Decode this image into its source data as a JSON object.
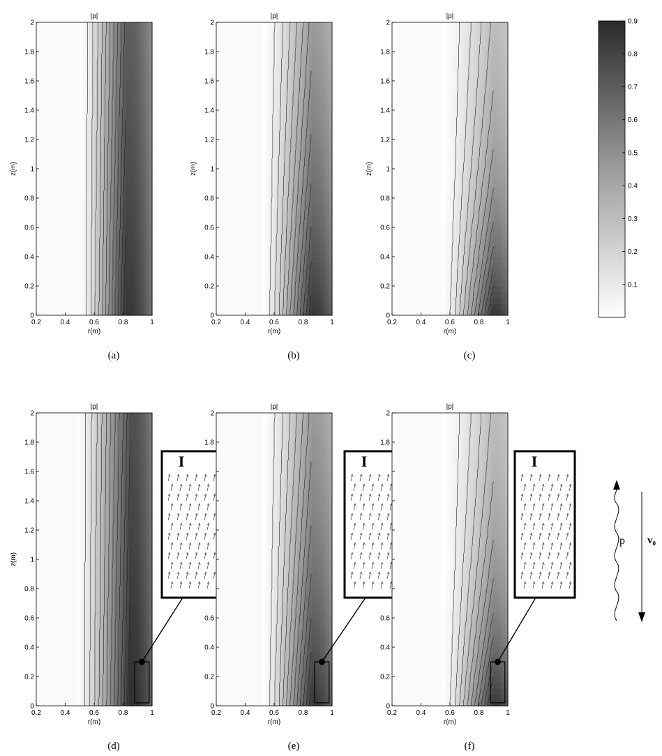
{
  "colorbar": {
    "min": 0,
    "max": 0.9,
    "ticks": [
      "0.1",
      "0.2",
      "0.3",
      "0.4",
      "0.5",
      "0.6",
      "0.7",
      "0.8",
      "0.9"
    ],
    "colormap": "gray-reversed",
    "low_color": "#ffffff",
    "high_color": "#2a2a2a"
  },
  "chart_data": [
    {
      "type": "heatmap",
      "panel": "a",
      "caption": "(a)",
      "title": "|p|",
      "xlabel": "r(m)",
      "ylabel": "z(m)",
      "xlim": [
        0.2,
        1
      ],
      "ylim": [
        0,
        2
      ],
      "xticks": [
        "0.2",
        "0.4",
        "0.6",
        "0.8",
        "1"
      ],
      "yticks": [
        "0",
        "0.2",
        "0.4",
        "0.6",
        "0.8",
        "1",
        "1.2",
        "1.4",
        "1.6",
        "1.8",
        "2"
      ],
      "field_onset_r": 0.5,
      "peak_r": 0.82,
      "max_value": 0.85,
      "decay_along_z": 0.15,
      "contour_levels": 12,
      "has_inset": false
    },
    {
      "type": "heatmap",
      "panel": "b",
      "caption": "(b)",
      "title": "|p|",
      "xlabel": "r(m)",
      "ylabel": "z(m)",
      "xlim": [
        0.2,
        1
      ],
      "ylim": [
        0,
        2
      ],
      "xticks": [
        "0.2",
        "0.4",
        "0.6",
        "0.8",
        "1"
      ],
      "yticks": [
        "0",
        "0.2",
        "0.4",
        "0.6",
        "0.8",
        "1",
        "1.2",
        "1.4",
        "1.6",
        "1.8",
        "2"
      ],
      "field_onset_r": 0.52,
      "peak_r": 0.86,
      "max_value": 0.85,
      "decay_along_z": 0.55,
      "contour_levels": 12,
      "has_inset": false
    },
    {
      "type": "heatmap",
      "panel": "c",
      "caption": "(c)",
      "title": "|p|",
      "xlabel": "r(m)",
      "ylabel": "z(m)",
      "xlim": [
        0.2,
        1
      ],
      "ylim": [
        0,
        2
      ],
      "xticks": [
        "0.2",
        "0.4",
        "0.6",
        "0.8",
        "1"
      ],
      "yticks": [
        "0",
        "0.2",
        "0.4",
        "0.6",
        "0.8",
        "1",
        "1.2",
        "1.4",
        "1.6",
        "1.8",
        "2"
      ],
      "field_onset_r": 0.55,
      "peak_r": 0.9,
      "max_value": 0.85,
      "decay_along_z": 1.1,
      "contour_levels": 12,
      "has_inset": false
    },
    {
      "type": "heatmap",
      "panel": "d",
      "caption": "(d)",
      "title": "|p|",
      "xlabel": "r(m)",
      "ylabel": "z(m)",
      "xlim": [
        0.2,
        1
      ],
      "ylim": [
        0,
        2
      ],
      "xticks": [
        "0.2",
        "0.4",
        "0.6",
        "0.8",
        "1"
      ],
      "yticks": [
        "0",
        "0.2",
        "0.4",
        "0.6",
        "0.8",
        "1",
        "1.2",
        "1.4",
        "1.6",
        "1.8",
        "2"
      ],
      "field_onset_r": 0.48,
      "peak_r": 0.85,
      "max_value": 0.88,
      "decay_along_z": 0.12,
      "contour_levels": 12,
      "has_inset": true,
      "inset_label": "I",
      "inset_region": {
        "r": [
          0.88,
          0.98
        ],
        "z": [
          0.02,
          0.3
        ]
      }
    },
    {
      "type": "heatmap",
      "panel": "e",
      "caption": "(e)",
      "title": "|p|",
      "xlabel": "r(m)",
      "ylabel": "",
      "xlim": [
        0.2,
        1
      ],
      "ylim": [
        0,
        2
      ],
      "xticks": [
        "0.2",
        "0.4",
        "0.6",
        "0.8",
        "1"
      ],
      "yticks": [
        "0",
        "0.2",
        "0.4",
        "0.6",
        "",
        "",
        "",
        "",
        "",
        "1.8",
        "2"
      ],
      "field_onset_r": 0.52,
      "peak_r": 0.86,
      "max_value": 0.85,
      "decay_along_z": 0.55,
      "contour_levels": 12,
      "has_inset": true,
      "inset_label": "I",
      "inset_region": {
        "r": [
          0.88,
          0.98
        ],
        "z": [
          0.02,
          0.3
        ]
      }
    },
    {
      "type": "heatmap",
      "panel": "f",
      "caption": "(f)",
      "title": "|p|",
      "xlabel": "r(m)",
      "ylabel": "",
      "xlim": [
        0.2,
        1
      ],
      "ylim": [
        0,
        2
      ],
      "xticks": [
        "0.2",
        "0.4",
        "0.6",
        "0.8",
        "1"
      ],
      "yticks": [
        "0",
        "0.2",
        "0.4",
        "0.6",
        "",
        "",
        "",
        "",
        "",
        "1.8",
        "2"
      ],
      "field_onset_r": 0.55,
      "peak_r": 0.9,
      "max_value": 0.85,
      "decay_along_z": 1.1,
      "contour_levels": 12,
      "has_inset": true,
      "inset_label": "I",
      "inset_region": {
        "r": [
          0.88,
          0.98
        ],
        "z": [
          0.02,
          0.3
        ]
      }
    }
  ],
  "schematic": {
    "wave_label": "p",
    "velocity_label": "v₀"
  }
}
